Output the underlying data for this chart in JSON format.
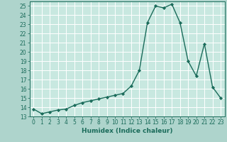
{
  "title": "",
  "xlabel": "Humidex (Indice chaleur)",
  "x_values": [
    0,
    1,
    2,
    3,
    4,
    5,
    6,
    7,
    8,
    9,
    10,
    11,
    12,
    13,
    14,
    15,
    16,
    17,
    18,
    19,
    20,
    21,
    22,
    23
  ],
  "y_values": [
    13.8,
    13.3,
    13.5,
    13.7,
    13.8,
    14.2,
    14.5,
    14.7,
    14.9,
    15.1,
    15.3,
    15.5,
    16.3,
    18.0,
    23.2,
    25.0,
    24.8,
    25.2,
    23.2,
    19.0,
    17.4,
    20.9,
    16.2,
    15.0
  ],
  "line_color": "#1a6b5a",
  "marker": "D",
  "marker_size": 2.2,
  "bg_color": "#aed4cc",
  "grid_color": "#ffffff",
  "plot_bg_color": "#c8e8e0",
  "xlim": [
    -0.5,
    23.5
  ],
  "ylim": [
    13,
    25.5
  ],
  "yticks": [
    13,
    14,
    15,
    16,
    17,
    18,
    19,
    20,
    21,
    22,
    23,
    24,
    25
  ],
  "xticks": [
    0,
    1,
    2,
    3,
    4,
    5,
    6,
    7,
    8,
    9,
    10,
    11,
    12,
    13,
    14,
    15,
    16,
    17,
    18,
    19,
    20,
    21,
    22,
    23
  ],
  "tick_fontsize": 5.5,
  "xlabel_fontsize": 6.5,
  "linewidth": 1.0
}
